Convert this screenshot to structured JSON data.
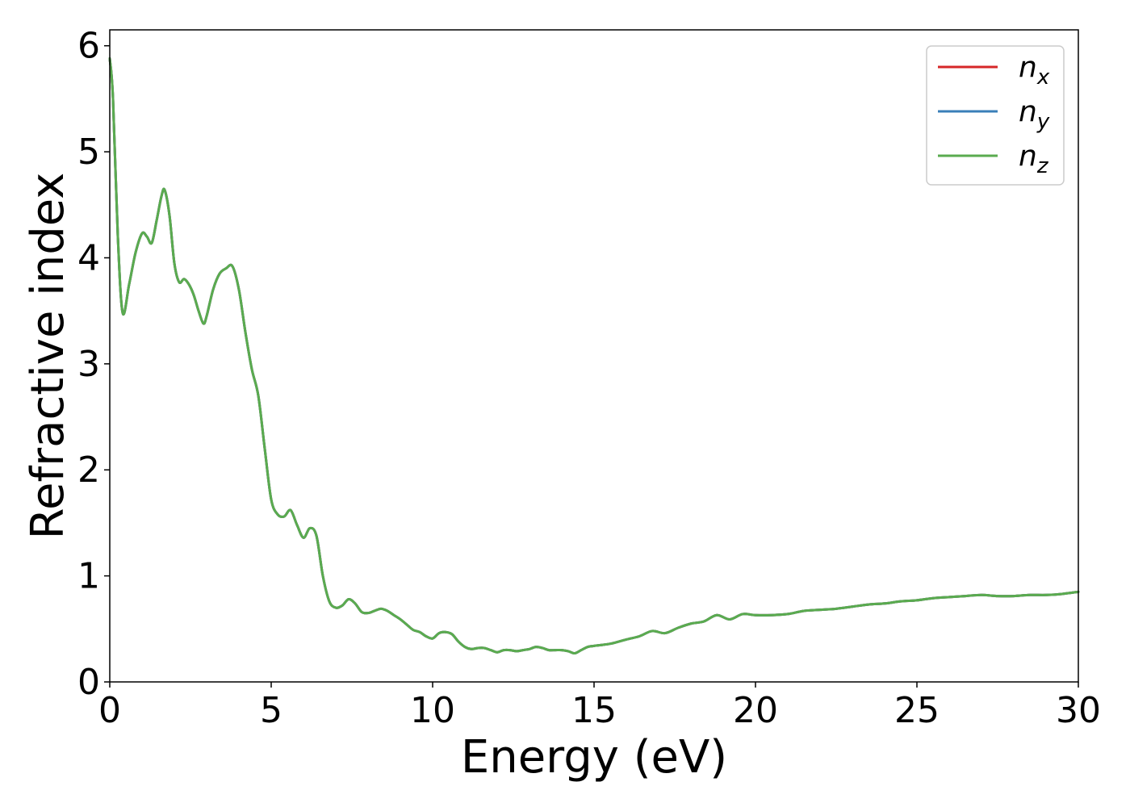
{
  "chart_data": {
    "type": "line",
    "title": "",
    "xlabel": "Energy (eV)",
    "ylabel": "Refractive index",
    "xlim": [
      0,
      30
    ],
    "ylim": [
      0,
      6.15
    ],
    "xticks": [
      0,
      5,
      10,
      15,
      20,
      25,
      30
    ],
    "yticks": [
      0,
      1,
      2,
      3,
      4,
      5,
      6
    ],
    "grid": false,
    "legend_position": "top-right",
    "x": [
      0,
      0.1,
      0.25,
      0.4,
      0.6,
      0.8,
      1.0,
      1.15,
      1.3,
      1.45,
      1.6,
      1.7,
      1.85,
      2.0,
      2.15,
      2.3,
      2.45,
      2.6,
      2.75,
      2.9,
      3.0,
      3.2,
      3.4,
      3.6,
      3.8,
      4.0,
      4.2,
      4.4,
      4.6,
      4.8,
      5.0,
      5.2,
      5.4,
      5.6,
      5.8,
      6.0,
      6.2,
      6.4,
      6.6,
      6.8,
      7.0,
      7.2,
      7.4,
      7.6,
      7.8,
      8.0,
      8.2,
      8.4,
      8.6,
      8.8,
      9.0,
      9.2,
      9.4,
      9.6,
      9.8,
      10.0,
      10.2,
      10.4,
      10.6,
      10.8,
      11.0,
      11.2,
      11.4,
      11.6,
      11.8,
      12.0,
      12.2,
      12.4,
      12.6,
      12.8,
      13.0,
      13.2,
      13.4,
      13.6,
      13.8,
      14.0,
      14.2,
      14.4,
      14.6,
      14.8,
      15.0,
      15.5,
      16.0,
      16.4,
      16.8,
      17.2,
      17.6,
      18.0,
      18.4,
      18.8,
      19.2,
      19.6,
      20.0,
      20.5,
      21.0,
      21.5,
      22.0,
      22.5,
      23.0,
      23.5,
      24.0,
      24.5,
      25.0,
      25.5,
      26.0,
      26.5,
      27.0,
      27.5,
      28.0,
      28.5,
      29.0,
      29.5,
      30.0
    ],
    "series": [
      {
        "name": "n_x",
        "label_base": "n",
        "label_sub": "x",
        "color": "#d62728",
        "values": [
          5.88,
          5.5,
          4.2,
          3.48,
          3.75,
          4.05,
          4.23,
          4.2,
          4.14,
          4.35,
          4.58,
          4.64,
          4.4,
          3.95,
          3.77,
          3.8,
          3.75,
          3.65,
          3.5,
          3.38,
          3.45,
          3.7,
          3.85,
          3.9,
          3.92,
          3.7,
          3.3,
          2.95,
          2.7,
          2.2,
          1.72,
          1.58,
          1.56,
          1.62,
          1.48,
          1.36,
          1.45,
          1.38,
          1.0,
          0.76,
          0.7,
          0.72,
          0.78,
          0.74,
          0.66,
          0.65,
          0.67,
          0.69,
          0.67,
          0.63,
          0.59,
          0.54,
          0.49,
          0.47,
          0.43,
          0.41,
          0.46,
          0.47,
          0.45,
          0.38,
          0.33,
          0.31,
          0.32,
          0.32,
          0.3,
          0.28,
          0.3,
          0.3,
          0.29,
          0.3,
          0.31,
          0.33,
          0.32,
          0.3,
          0.3,
          0.3,
          0.29,
          0.27,
          0.3,
          0.33,
          0.34,
          0.36,
          0.4,
          0.43,
          0.48,
          0.46,
          0.51,
          0.55,
          0.57,
          0.63,
          0.59,
          0.64,
          0.63,
          0.63,
          0.64,
          0.67,
          0.68,
          0.69,
          0.71,
          0.73,
          0.74,
          0.76,
          0.77,
          0.79,
          0.8,
          0.81,
          0.82,
          0.81,
          0.81,
          0.82,
          0.82,
          0.83,
          0.85
        ]
      },
      {
        "name": "n_y",
        "label_base": "n",
        "label_sub": "y",
        "color": "#3a7fb8",
        "values": [
          5.88,
          5.5,
          4.2,
          3.48,
          3.75,
          4.05,
          4.23,
          4.2,
          4.14,
          4.35,
          4.58,
          4.64,
          4.4,
          3.95,
          3.77,
          3.8,
          3.75,
          3.65,
          3.5,
          3.38,
          3.45,
          3.7,
          3.85,
          3.9,
          3.92,
          3.7,
          3.3,
          2.95,
          2.7,
          2.2,
          1.72,
          1.58,
          1.56,
          1.62,
          1.48,
          1.36,
          1.45,
          1.38,
          1.0,
          0.76,
          0.7,
          0.72,
          0.78,
          0.74,
          0.66,
          0.65,
          0.67,
          0.69,
          0.67,
          0.63,
          0.59,
          0.54,
          0.49,
          0.47,
          0.43,
          0.41,
          0.46,
          0.47,
          0.45,
          0.38,
          0.33,
          0.31,
          0.32,
          0.32,
          0.3,
          0.28,
          0.3,
          0.3,
          0.29,
          0.3,
          0.31,
          0.33,
          0.32,
          0.3,
          0.3,
          0.3,
          0.29,
          0.27,
          0.3,
          0.33,
          0.34,
          0.36,
          0.4,
          0.43,
          0.48,
          0.46,
          0.51,
          0.55,
          0.57,
          0.63,
          0.59,
          0.64,
          0.63,
          0.63,
          0.64,
          0.67,
          0.68,
          0.69,
          0.71,
          0.73,
          0.74,
          0.76,
          0.77,
          0.79,
          0.8,
          0.81,
          0.82,
          0.81,
          0.81,
          0.82,
          0.82,
          0.83,
          0.85
        ]
      },
      {
        "name": "n_z",
        "label_base": "n",
        "label_sub": "z",
        "color": "#5aab4f",
        "values": [
          5.88,
          5.5,
          4.2,
          3.48,
          3.75,
          4.05,
          4.23,
          4.2,
          4.14,
          4.35,
          4.58,
          4.64,
          4.4,
          3.95,
          3.77,
          3.8,
          3.75,
          3.65,
          3.5,
          3.38,
          3.45,
          3.7,
          3.85,
          3.9,
          3.92,
          3.7,
          3.3,
          2.95,
          2.7,
          2.2,
          1.72,
          1.58,
          1.56,
          1.62,
          1.48,
          1.36,
          1.45,
          1.38,
          1.0,
          0.76,
          0.7,
          0.72,
          0.78,
          0.74,
          0.66,
          0.65,
          0.67,
          0.69,
          0.67,
          0.63,
          0.59,
          0.54,
          0.49,
          0.47,
          0.43,
          0.41,
          0.46,
          0.47,
          0.45,
          0.38,
          0.33,
          0.31,
          0.32,
          0.32,
          0.3,
          0.28,
          0.3,
          0.3,
          0.29,
          0.3,
          0.31,
          0.33,
          0.32,
          0.3,
          0.3,
          0.3,
          0.29,
          0.27,
          0.3,
          0.33,
          0.34,
          0.36,
          0.4,
          0.43,
          0.48,
          0.46,
          0.51,
          0.55,
          0.57,
          0.63,
          0.59,
          0.64,
          0.63,
          0.63,
          0.64,
          0.67,
          0.68,
          0.69,
          0.71,
          0.73,
          0.74,
          0.76,
          0.77,
          0.79,
          0.8,
          0.81,
          0.82,
          0.81,
          0.81,
          0.82,
          0.82,
          0.83,
          0.85
        ]
      }
    ]
  }
}
